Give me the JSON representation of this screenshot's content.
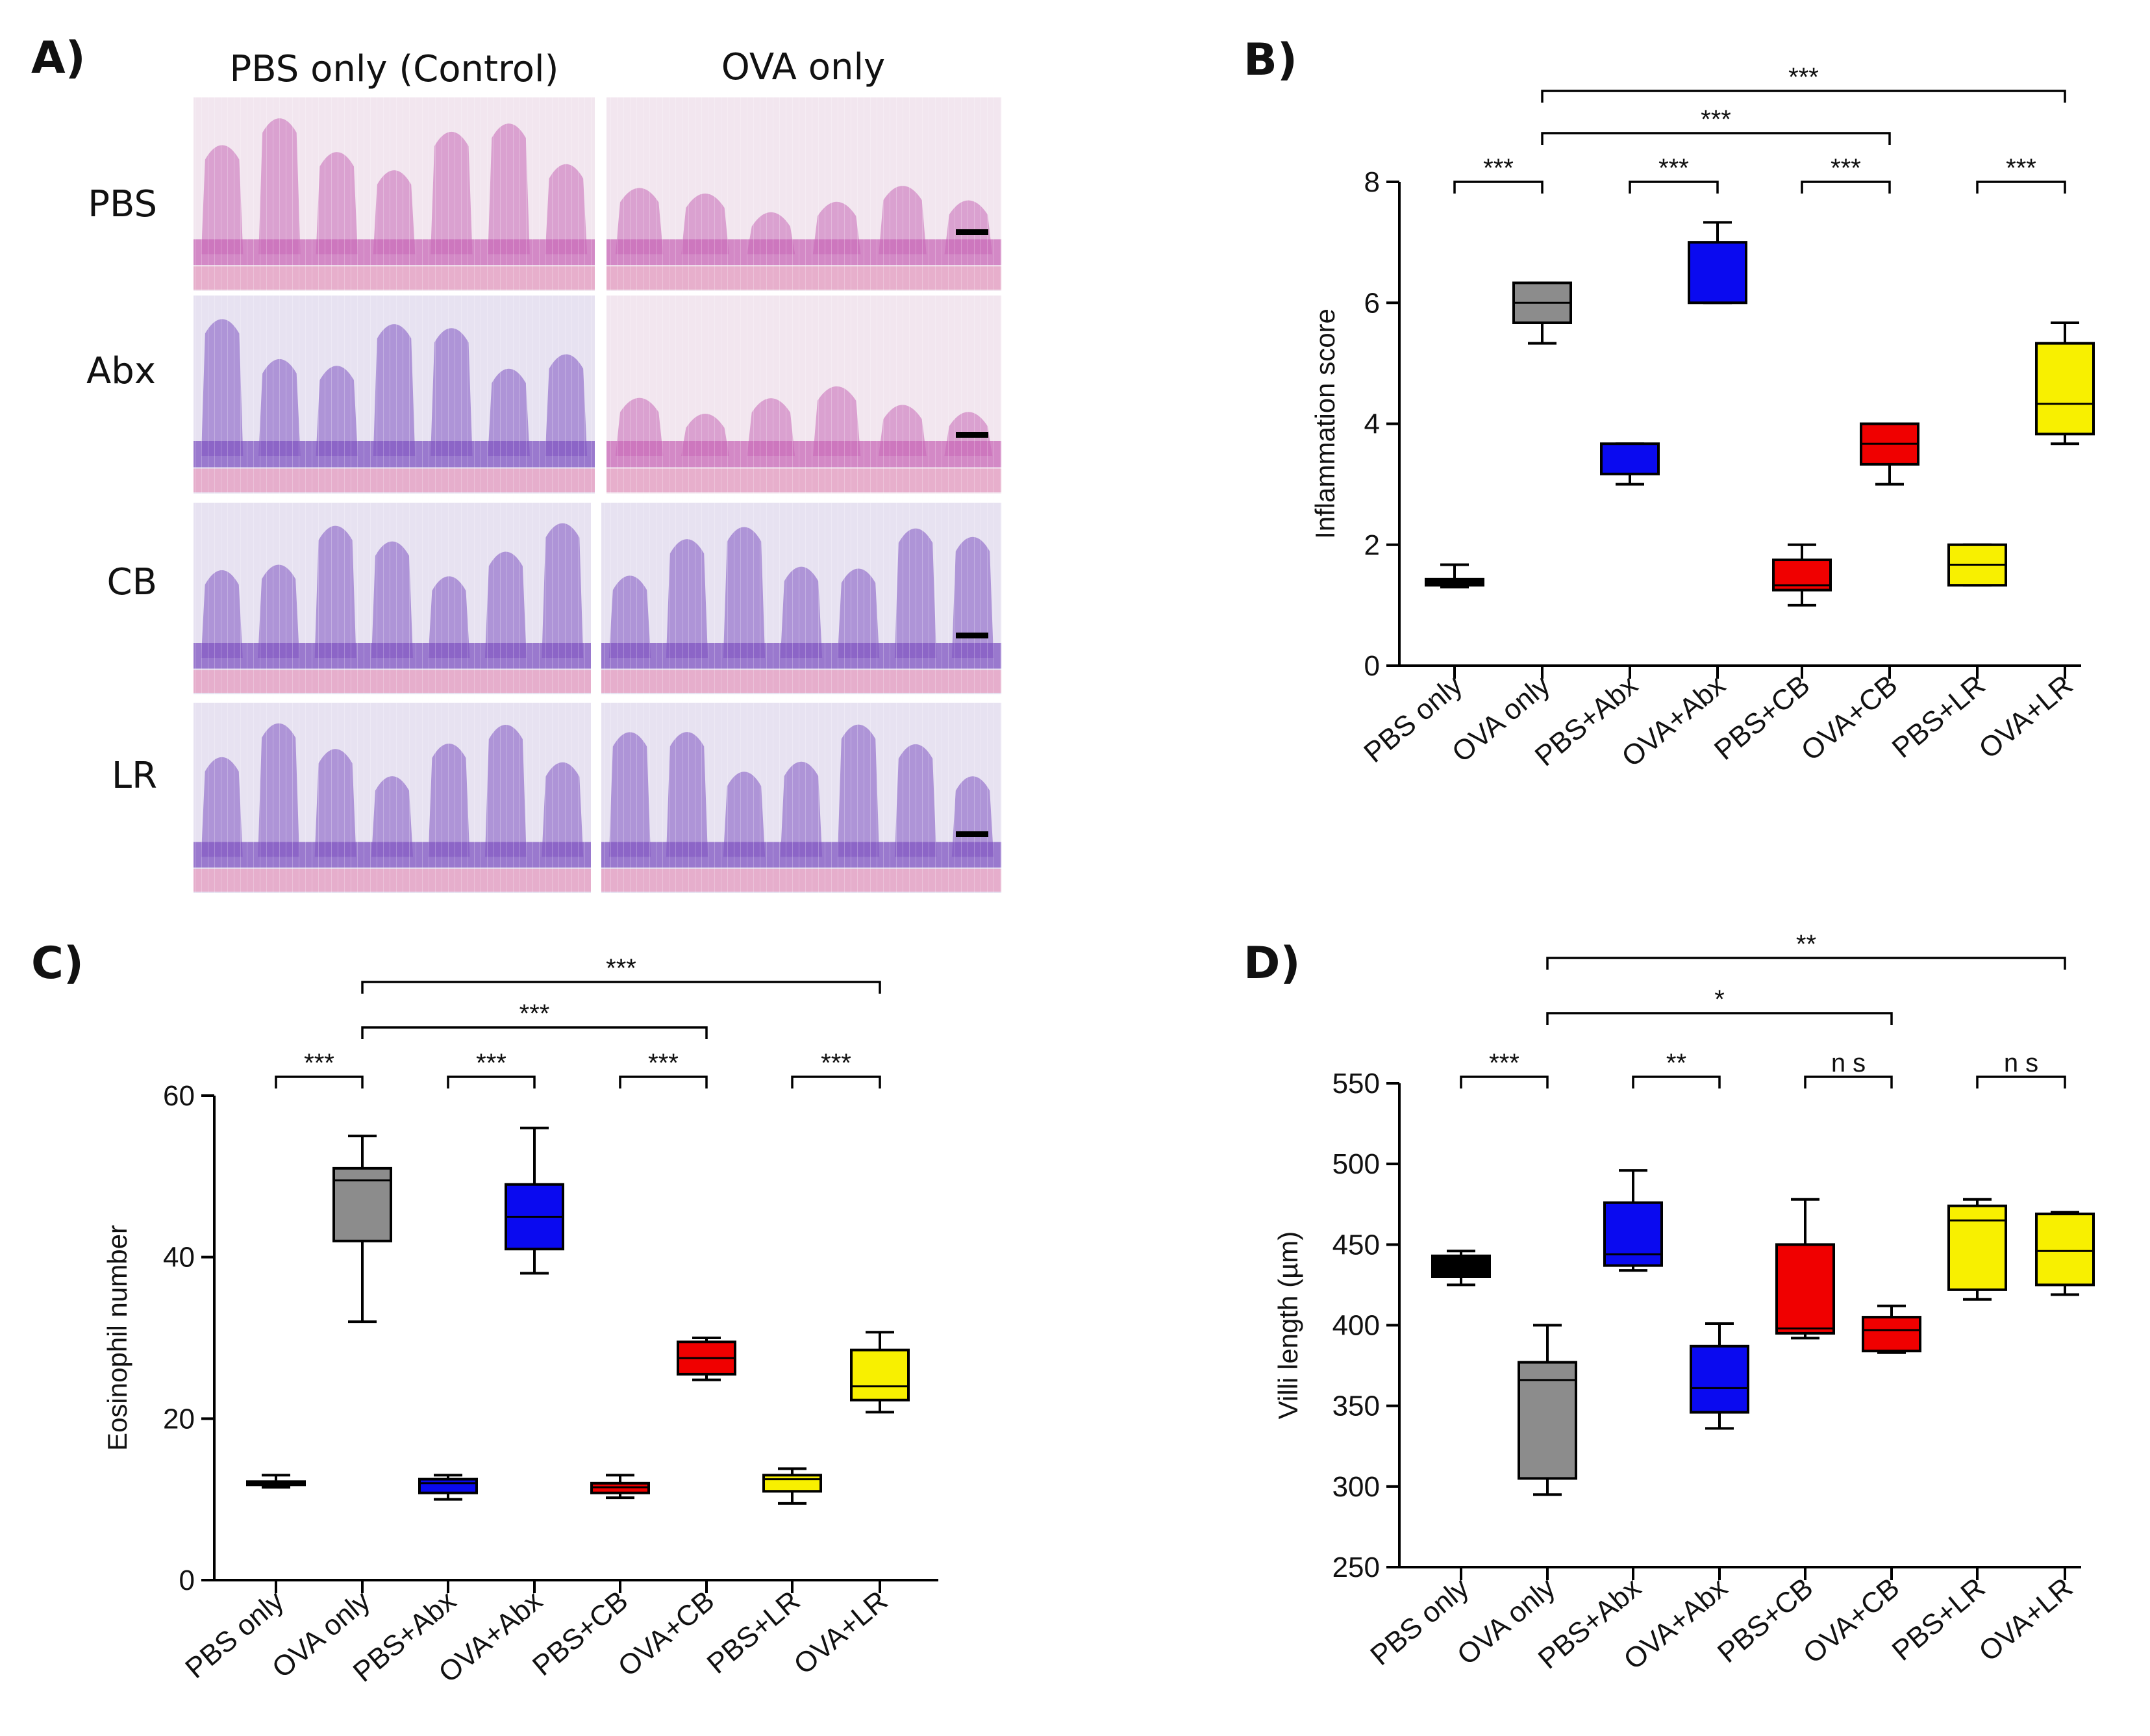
{
  "panel_a": {
    "label": "A)",
    "col_headers": [
      "PBS only (Control)",
      "OVA only"
    ],
    "row_labels": [
      "PBS",
      "Abx",
      "CB",
      "LR"
    ],
    "tile_colors": {
      "pink_bg": "#f2e6ef",
      "purple_bg": "#e7e2f1",
      "tissue_pink": "#c86ab8",
      "tissue_purple": "#8055c2",
      "muscle": "#e6a8c8"
    }
  },
  "colors": {
    "PBS only": "#000000",
    "OVA only": "#8c8c8c",
    "Abx": "#0a0af0",
    "CB": "#f00000",
    "LR": "#f8f000"
  },
  "chart_data": [
    {
      "id": "B",
      "label": "B)",
      "type": "box",
      "ylabel": "Inflammation score",
      "xlabel": "",
      "ylim": [
        0,
        8
      ],
      "yticks": [
        0,
        2,
        4,
        6,
        8
      ],
      "categories": [
        "PBS only",
        "OVA only",
        "PBS+Abx",
        "OVA+Abx",
        "PBS+CB",
        "OVA+CB",
        "PBS+LR",
        "OVA+LR"
      ],
      "boxes": [
        {
          "min": 1.3,
          "q1": 1.33,
          "median": 1.37,
          "q3": 1.43,
          "max": 1.67,
          "color": "#000000"
        },
        {
          "min": 5.33,
          "q1": 5.67,
          "median": 6.0,
          "q3": 6.33,
          "max": 6.33,
          "color": "#8c8c8c"
        },
        {
          "min": 3.0,
          "q1": 3.17,
          "median": 3.67,
          "q3": 3.67,
          "max": 3.67,
          "color": "#0a0af0"
        },
        {
          "min": 6.0,
          "q1": 6.0,
          "median": 7.0,
          "q3": 7.0,
          "max": 7.33,
          "color": "#0a0af0"
        },
        {
          "min": 1.0,
          "q1": 1.25,
          "median": 1.33,
          "q3": 1.75,
          "max": 2.0,
          "color": "#f00000"
        },
        {
          "min": 3.0,
          "q1": 3.33,
          "median": 3.67,
          "q3": 4.0,
          "max": 4.0,
          "color": "#f00000"
        },
        {
          "min": 1.33,
          "q1": 1.33,
          "median": 1.67,
          "q3": 2.0,
          "max": 2.0,
          "color": "#f8f000"
        },
        {
          "min": 3.67,
          "q1": 3.83,
          "median": 4.33,
          "q3": 5.33,
          "max": 5.67,
          "color": "#f8f000"
        }
      ],
      "comparisons": [
        {
          "from": 0,
          "to": 1,
          "label": "***",
          "level": 0
        },
        {
          "from": 2,
          "to": 3,
          "label": "***",
          "level": 0
        },
        {
          "from": 4,
          "to": 5,
          "label": "***",
          "level": 0
        },
        {
          "from": 6,
          "to": 7,
          "label": "***",
          "level": 0
        },
        {
          "from": 1,
          "to": 5,
          "label": "***",
          "level": 1
        },
        {
          "from": 1,
          "to": 7,
          "label": "***",
          "level": 2
        }
      ]
    },
    {
      "id": "C",
      "label": "C)",
      "type": "box",
      "ylabel": "Eosinophil number",
      "xlabel": "",
      "ylim": [
        0,
        60
      ],
      "yticks": [
        0,
        20,
        40,
        60
      ],
      "categories": [
        "PBS only",
        "OVA only",
        "PBS+Abx",
        "OVA+Abx",
        "PBS+CB",
        "OVA+CB",
        "PBS+LR",
        "OVA+LR"
      ],
      "boxes": [
        {
          "min": 11.5,
          "q1": 11.8,
          "median": 12.0,
          "q3": 12.2,
          "max": 13.0,
          "color": "#000000"
        },
        {
          "min": 32,
          "q1": 42,
          "median": 49.5,
          "q3": 51,
          "max": 55,
          "color": "#8c8c8c"
        },
        {
          "min": 10,
          "q1": 10.8,
          "median": 12,
          "q3": 12.5,
          "max": 13,
          "color": "#0a0af0"
        },
        {
          "min": 38,
          "q1": 41,
          "median": 45,
          "q3": 49,
          "max": 56,
          "color": "#0a0af0"
        },
        {
          "min": 10.2,
          "q1": 10.8,
          "median": 11.5,
          "q3": 12,
          "max": 13,
          "color": "#f00000"
        },
        {
          "min": 24.8,
          "q1": 25.5,
          "median": 27.5,
          "q3": 29.5,
          "max": 30,
          "color": "#f00000"
        },
        {
          "min": 9.5,
          "q1": 11,
          "median": 12.5,
          "q3": 13,
          "max": 13.8,
          "color": "#f8f000"
        },
        {
          "min": 20.8,
          "q1": 22.3,
          "median": 24,
          "q3": 28.5,
          "max": 30.7,
          "color": "#f8f000"
        }
      ],
      "comparisons": [
        {
          "from": 0,
          "to": 1,
          "label": "***",
          "level": 0
        },
        {
          "from": 2,
          "to": 3,
          "label": "***",
          "level": 0
        },
        {
          "from": 4,
          "to": 5,
          "label": "***",
          "level": 0
        },
        {
          "from": 6,
          "to": 7,
          "label": "***",
          "level": 0
        },
        {
          "from": 1,
          "to": 5,
          "label": "***",
          "level": 1
        },
        {
          "from": 1,
          "to": 7,
          "label": "***",
          "level": 2
        }
      ]
    },
    {
      "id": "D",
      "label": "D)",
      "type": "box",
      "ylabel": "Villi length (µm)",
      "xlabel": "",
      "ylim": [
        250,
        550
      ],
      "yticks": [
        250,
        300,
        350,
        400,
        450,
        500,
        550
      ],
      "categories": [
        "PBS only",
        "OVA only",
        "PBS+Abx",
        "OVA+Abx",
        "PBS+CB",
        "OVA+CB",
        "PBS+LR",
        "OVA+LR"
      ],
      "boxes": [
        {
          "min": 425,
          "q1": 430,
          "median": 438,
          "q3": 443,
          "max": 446,
          "color": "#000000"
        },
        {
          "min": 295,
          "q1": 305,
          "median": 366,
          "q3": 377,
          "max": 400,
          "color": "#8c8c8c"
        },
        {
          "min": 434,
          "q1": 437,
          "median": 444,
          "q3": 476,
          "max": 496,
          "color": "#0a0af0"
        },
        {
          "min": 336,
          "q1": 346,
          "median": 361,
          "q3": 387,
          "max": 401,
          "color": "#0a0af0"
        },
        {
          "min": 392,
          "q1": 395,
          "median": 398,
          "q3": 450,
          "max": 478,
          "color": "#f00000"
        },
        {
          "min": 383,
          "q1": 384,
          "median": 397,
          "q3": 405,
          "max": 412,
          "color": "#f00000"
        },
        {
          "min": 416,
          "q1": 422,
          "median": 465,
          "q3": 474,
          "max": 478,
          "color": "#f8f000"
        },
        {
          "min": 419,
          "q1": 425,
          "median": 446,
          "q3": 469,
          "max": 470,
          "color": "#f8f000"
        }
      ],
      "comparisons": [
        {
          "from": 0,
          "to": 1,
          "label": "***",
          "level": 0
        },
        {
          "from": 2,
          "to": 3,
          "label": "**",
          "level": 0
        },
        {
          "from": 4,
          "to": 5,
          "label": "n s",
          "level": 0
        },
        {
          "from": 6,
          "to": 7,
          "label": "n s",
          "level": 0
        },
        {
          "from": 1,
          "to": 5,
          "label": "*",
          "level": 1
        },
        {
          "from": 1,
          "to": 7,
          "label": "**",
          "level": 2
        }
      ]
    }
  ]
}
